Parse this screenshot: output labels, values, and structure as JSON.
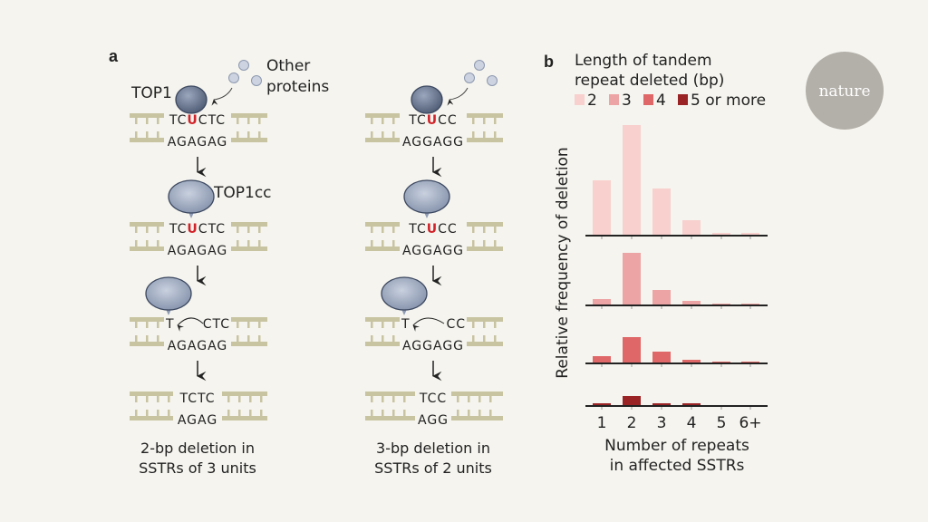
{
  "panel_a": {
    "label": "a",
    "top1_label": "TOP1",
    "top1cc_label": "TOP1cc",
    "other_proteins": [
      "Other",
      "proteins"
    ],
    "columns": [
      {
        "rows": [
          {
            "top": [
              "TC",
              "U",
              "CTC"
            ],
            "bottom": "AGAGAG"
          },
          {
            "top": [
              "TC",
              "U",
              "CTC"
            ],
            "bottom": "AGAGAG"
          },
          {
            "top": [
              "T",
              "",
              "CTC"
            ],
            "bottom": "AGAGAG"
          },
          {
            "top": [
              "TCTC",
              "",
              ""
            ],
            "bottom": "AGAG"
          }
        ],
        "caption": [
          "2-bp deletion in",
          "SSTRs of 3 units"
        ]
      },
      {
        "rows": [
          {
            "top": [
              "TC",
              "U",
              "CC"
            ],
            "bottom": "AGGAGG"
          },
          {
            "top": [
              "TC",
              "U",
              "CC"
            ],
            "bottom": "AGGAGG"
          },
          {
            "top": [
              "T",
              "",
              "CC"
            ],
            "bottom": "AGGAGG"
          },
          {
            "top": [
              "TCC",
              "",
              ""
            ],
            "bottom": "AGG"
          }
        ],
        "caption": [
          "3-bp deletion in",
          "SSTRs of 2 units"
        ]
      }
    ]
  },
  "chart_data": {
    "type": "bar",
    "panel_label": "b",
    "legend_title": [
      "Length of tandem",
      "repeat deleted (bp)"
    ],
    "legend_placement": "top",
    "categories": [
      "1",
      "2",
      "3",
      "4",
      "5",
      "6+"
    ],
    "series": [
      {
        "name": "2",
        "color": "#f8d0cd",
        "values": [
          61,
          122,
          52,
          17,
          3,
          3
        ]
      },
      {
        "name": "3",
        "color": "#eda4a4",
        "values": [
          7,
          58,
          17,
          5,
          2,
          2
        ]
      },
      {
        "name": "4",
        "color": "#df6767",
        "values": [
          8,
          29,
          13,
          4,
          2,
          2
        ]
      },
      {
        "name": "5 or more",
        "color": "#9a2326",
        "values": [
          3,
          11,
          3,
          3,
          0,
          0
        ]
      }
    ],
    "ylabel": "Relative frequency of deletion",
    "xlabel": [
      "Number of repeats",
      "in affected SSTRs"
    ]
  },
  "logo": "nature",
  "colors": {
    "dna": "#c8c3a1",
    "protein": "#8c9ab3",
    "uracil": "#d0232a"
  }
}
